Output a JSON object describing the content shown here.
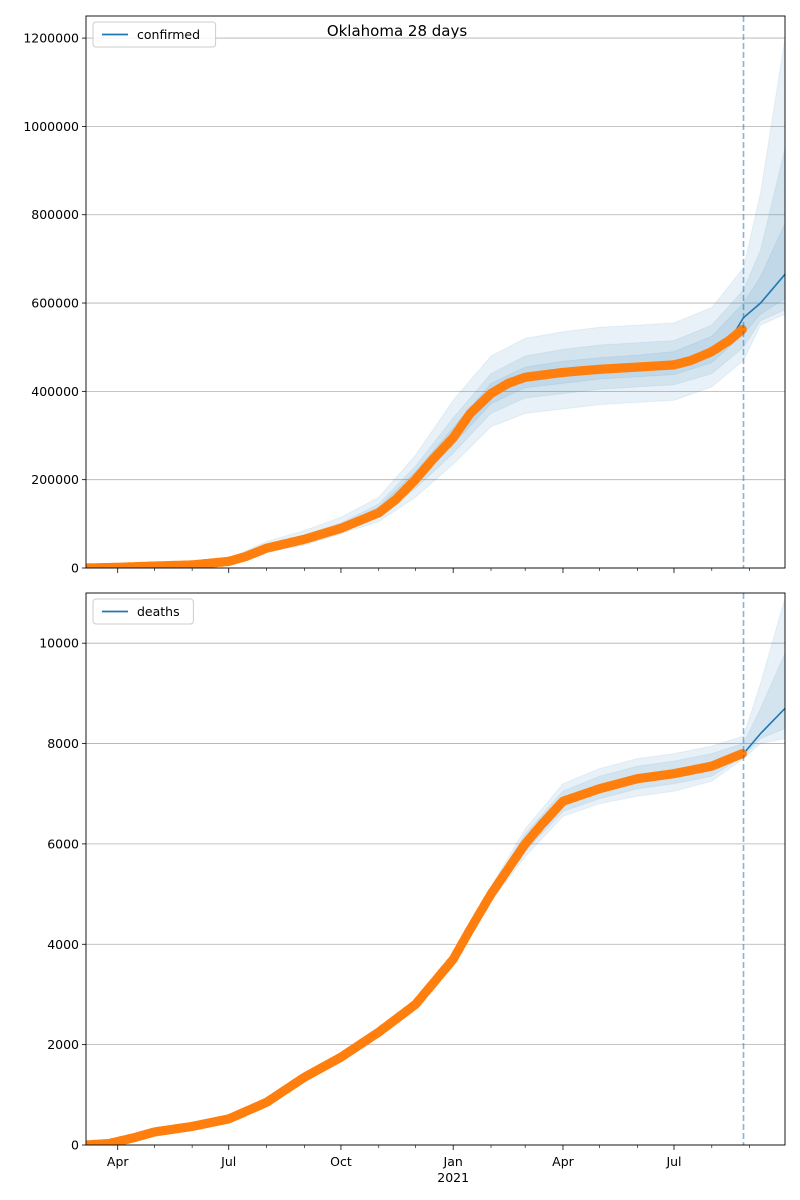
{
  "figure": {
    "title": "Oklahoma 28 days"
  },
  "colors": {
    "model": "#1f77b4",
    "observed": "#ff7f0e",
    "band": "#1f77b4",
    "grid": "#b0b0b0",
    "vline": "#1f77b4"
  },
  "x_axis": {
    "domain": [
      "2020-03-06",
      "2021-09-30"
    ],
    "forecast_start": "2021-08-27",
    "major_ticks": [
      {
        "date": "2020-04-01",
        "label": "Apr",
        "sub": ""
      },
      {
        "date": "2020-07-01",
        "label": "Jul",
        "sub": ""
      },
      {
        "date": "2020-10-01",
        "label": "Oct",
        "sub": ""
      },
      {
        "date": "2021-01-01",
        "label": "Jan",
        "sub": "2021"
      },
      {
        "date": "2021-04-01",
        "label": "Apr",
        "sub": ""
      },
      {
        "date": "2021-07-01",
        "label": "Jul",
        "sub": ""
      }
    ],
    "minor_ticks": [
      "2020-05-01",
      "2020-06-01",
      "2020-08-01",
      "2020-09-01",
      "2020-11-01",
      "2020-12-01",
      "2021-02-01",
      "2021-03-01",
      "2021-05-01",
      "2021-06-01",
      "2021-08-01",
      "2021-09-01"
    ]
  },
  "chart_data": [
    {
      "type": "line",
      "name": "confirmed",
      "legend": "confirmed",
      "legend_position": "upper left",
      "grid": "horizontal",
      "ylim": [
        0,
        1250000
      ],
      "yticks": [
        0,
        200000,
        400000,
        600000,
        800000,
        1000000,
        1200000
      ],
      "observed": {
        "x": [
          "2020-03-06",
          "2020-04-01",
          "2020-05-01",
          "2020-06-01",
          "2020-07-01",
          "2020-07-15",
          "2020-08-01",
          "2020-09-01",
          "2020-10-01",
          "2020-11-01",
          "2020-11-15",
          "2020-12-01",
          "2020-12-15",
          "2021-01-01",
          "2021-01-15",
          "2021-02-01",
          "2021-02-15",
          "2021-03-01",
          "2021-04-01",
          "2021-05-01",
          "2021-06-01",
          "2021-07-01",
          "2021-07-15",
          "2021-08-01",
          "2021-08-15",
          "2021-08-26"
        ],
        "y": [
          0,
          1500,
          4500,
          7000,
          15000,
          26000,
          45000,
          65000,
          90000,
          125000,
          155000,
          200000,
          245000,
          295000,
          350000,
          395000,
          418000,
          432000,
          443000,
          450000,
          455000,
          460000,
          470000,
          490000,
          515000,
          540000
        ]
      },
      "model": {
        "x": [
          "2020-03-06",
          "2020-06-01",
          "2020-07-01",
          "2020-08-01",
          "2020-09-01",
          "2020-10-01",
          "2020-11-01",
          "2020-12-01",
          "2021-01-01",
          "2021-02-01",
          "2021-03-01",
          "2021-04-01",
          "2021-05-01",
          "2021-06-01",
          "2021-07-01",
          "2021-08-01",
          "2021-08-20",
          "2021-08-27",
          "2021-09-10",
          "2021-09-30"
        ],
        "y": [
          0,
          7000,
          15000,
          45000,
          65000,
          92000,
          130000,
          205000,
          300000,
          395000,
          432000,
          443000,
          452000,
          458000,
          465000,
          495000,
          535000,
          567000,
          600000,
          665000
        ]
      },
      "bands": [
        {
          "x": [
            "2020-03-06",
            "2020-06-01",
            "2020-07-01",
            "2020-08-01",
            "2020-09-01",
            "2020-10-01",
            "2020-11-01",
            "2020-12-01",
            "2021-01-01",
            "2021-02-01",
            "2021-03-01",
            "2021-04-01",
            "2021-05-01",
            "2021-06-01",
            "2021-07-01",
            "2021-08-01",
            "2021-08-27",
            "2021-09-10",
            "2021-09-30"
          ],
          "lower": [
            0,
            5000,
            11000,
            35000,
            52000,
            78000,
            105000,
            160000,
            235000,
            320000,
            350000,
            360000,
            370000,
            375000,
            380000,
            410000,
            470000,
            550000,
            575000
          ],
          "upper": [
            0,
            10000,
            22000,
            60000,
            85000,
            115000,
            160000,
            255000,
            380000,
            480000,
            520000,
            535000,
            545000,
            550000,
            555000,
            590000,
            680000,
            850000,
            1200000
          ]
        },
        {
          "x": [
            "2020-03-06",
            "2020-06-01",
            "2020-07-01",
            "2020-08-01",
            "2020-09-01",
            "2020-10-01",
            "2020-11-01",
            "2020-12-01",
            "2021-01-01",
            "2021-02-01",
            "2021-03-01",
            "2021-04-01",
            "2021-05-01",
            "2021-06-01",
            "2021-07-01",
            "2021-08-01",
            "2021-08-27",
            "2021-09-10",
            "2021-09-30"
          ],
          "lower": [
            0,
            6000,
            13000,
            40000,
            58000,
            85000,
            115000,
            180000,
            260000,
            350000,
            385000,
            395000,
            405000,
            410000,
            415000,
            440000,
            500000,
            560000,
            585000
          ],
          "upper": [
            0,
            8500,
            18000,
            52000,
            75000,
            102000,
            145000,
            230000,
            340000,
            440000,
            480000,
            495000,
            505000,
            510000,
            515000,
            550000,
            630000,
            720000,
            950000
          ]
        },
        {
          "x": [
            "2020-03-06",
            "2020-06-01",
            "2020-07-01",
            "2020-08-01",
            "2020-09-01",
            "2020-10-01",
            "2020-11-01",
            "2020-12-01",
            "2021-01-01",
            "2021-02-01",
            "2021-03-01",
            "2021-04-01",
            "2021-05-01",
            "2021-06-01",
            "2021-07-01",
            "2021-08-01",
            "2021-08-27",
            "2021-09-10",
            "2021-09-30"
          ],
          "lower": [
            0,
            6500,
            14000,
            42000,
            61000,
            88000,
            122000,
            192000,
            280000,
            372000,
            408000,
            418000,
            428000,
            433000,
            438000,
            465000,
            530000,
            575000,
            610000
          ],
          "upper": [
            0,
            7500,
            16500,
            48000,
            70000,
            97000,
            138000,
            218000,
            318000,
            418000,
            455000,
            468000,
            476000,
            482000,
            490000,
            525000,
            600000,
            660000,
            780000
          ]
        }
      ]
    },
    {
      "type": "line",
      "name": "deaths",
      "legend": "deaths",
      "legend_position": "upper left",
      "grid": "horizontal",
      "ylim": [
        0,
        11000
      ],
      "yticks": [
        0,
        2000,
        4000,
        6000,
        8000,
        10000
      ],
      "observed": {
        "x": [
          "2020-03-06",
          "2020-03-25",
          "2020-04-15",
          "2020-05-01",
          "2020-06-01",
          "2020-07-01",
          "2020-08-01",
          "2020-09-01",
          "2020-10-01",
          "2020-11-01",
          "2020-12-01",
          "2021-01-01",
          "2021-01-15",
          "2021-02-01",
          "2021-02-15",
          "2021-03-01",
          "2021-03-15",
          "2021-04-01",
          "2021-05-01",
          "2021-06-01",
          "2021-07-01",
          "2021-08-01",
          "2021-08-26"
        ],
        "y": [
          0,
          30,
          150,
          260,
          370,
          520,
          850,
          1350,
          1750,
          2250,
          2800,
          3700,
          4300,
          5000,
          5500,
          6000,
          6400,
          6850,
          7100,
          7300,
          7400,
          7550,
          7800
        ]
      },
      "model": {
        "x": [
          "2020-03-06",
          "2020-04-15",
          "2020-05-01",
          "2020-06-01",
          "2020-07-01",
          "2020-08-01",
          "2020-09-01",
          "2020-10-01",
          "2020-11-01",
          "2020-12-01",
          "2021-01-01",
          "2021-02-01",
          "2021-03-01",
          "2021-04-01",
          "2021-05-01",
          "2021-06-01",
          "2021-07-01",
          "2021-08-01",
          "2021-08-27",
          "2021-09-10",
          "2021-09-30"
        ],
        "y": [
          0,
          150,
          260,
          370,
          520,
          850,
          1350,
          1750,
          2250,
          2800,
          3700,
          5000,
          6000,
          6850,
          7100,
          7300,
          7400,
          7550,
          7800,
          8200,
          8700
        ]
      },
      "bands": [
        {
          "x": [
            "2021-01-01",
            "2021-02-01",
            "2021-03-01",
            "2021-04-01",
            "2021-05-01",
            "2021-06-01",
            "2021-07-01",
            "2021-08-01",
            "2021-08-27",
            "2021-09-10",
            "2021-09-30"
          ],
          "lower": [
            3600,
            4850,
            5750,
            6550,
            6800,
            6950,
            7050,
            7250,
            7700,
            8000,
            8100
          ],
          "upper": [
            3800,
            5150,
            6300,
            7200,
            7500,
            7700,
            7800,
            7950,
            8150,
            9200,
            10900
          ]
        },
        {
          "x": [
            "2021-01-01",
            "2021-02-01",
            "2021-03-01",
            "2021-04-01",
            "2021-05-01",
            "2021-06-01",
            "2021-07-01",
            "2021-08-01",
            "2021-08-27",
            "2021-09-10",
            "2021-09-30"
          ],
          "lower": [
            3650,
            4900,
            5850,
            6650,
            6900,
            7100,
            7200,
            7350,
            7750,
            8100,
            8300
          ],
          "upper": [
            3750,
            5100,
            6200,
            7050,
            7350,
            7550,
            7650,
            7800,
            8000,
            8700,
            9800
          ]
        }
      ]
    }
  ]
}
